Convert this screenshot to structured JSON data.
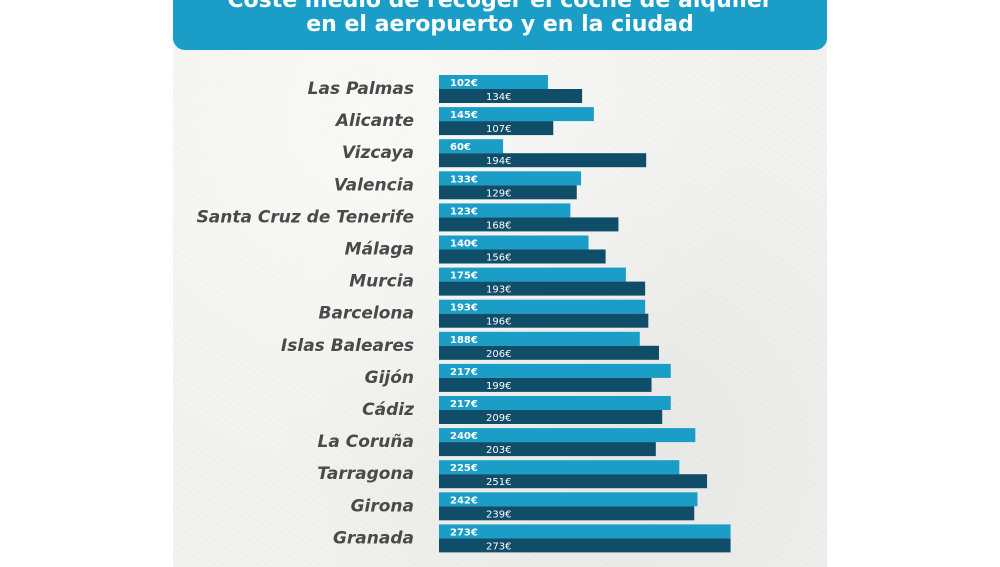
{
  "title": {
    "line1": "Coste medio de recoger el coche de alquiler",
    "line2": "en el aeropuerto y en la ciudad"
  },
  "colors": {
    "banner": "#1a9dc7",
    "series_airport": "#1a9dc7",
    "series_city": "#0f4d68",
    "label": "#4a4a4a"
  },
  "chart_data": {
    "type": "bar",
    "orientation": "horizontal",
    "categories": [
      "Las Palmas",
      "Alicante",
      "Vizcaya",
      "Valencia",
      "Santa Cruz de Tenerife",
      "Málaga",
      "Murcia",
      "Barcelona",
      "Islas Baleares",
      "Gijón",
      "Cádiz",
      "La Coruña",
      "Tarragona",
      "Girona",
      "Granada"
    ],
    "series": [
      {
        "values": [
          102,
          145,
          60,
          133,
          123,
          140,
          175,
          193,
          188,
          217,
          217,
          240,
          225,
          242,
          273
        ],
        "labels": [
          "102€",
          "145€",
          "60€",
          "133€",
          "123€",
          "140€",
          "175€",
          "193€",
          "188€",
          "217€",
          "217€",
          "240€",
          "225€",
          "242€",
          "273€"
        ]
      },
      {
        "values": [
          134,
          107,
          194,
          129,
          168,
          156,
          193,
          196,
          206,
          199,
          209,
          203,
          251,
          239,
          273
        ],
        "labels": [
          "134€",
          "107€",
          "194€",
          "129€",
          "168€",
          "156€",
          "193€",
          "196€",
          "206€",
          "199€",
          "209€",
          "203€",
          "251€",
          "239€",
          "273€"
        ]
      }
    ],
    "xlim": [
      0,
      273
    ],
    "grid": false,
    "legend": "none"
  }
}
